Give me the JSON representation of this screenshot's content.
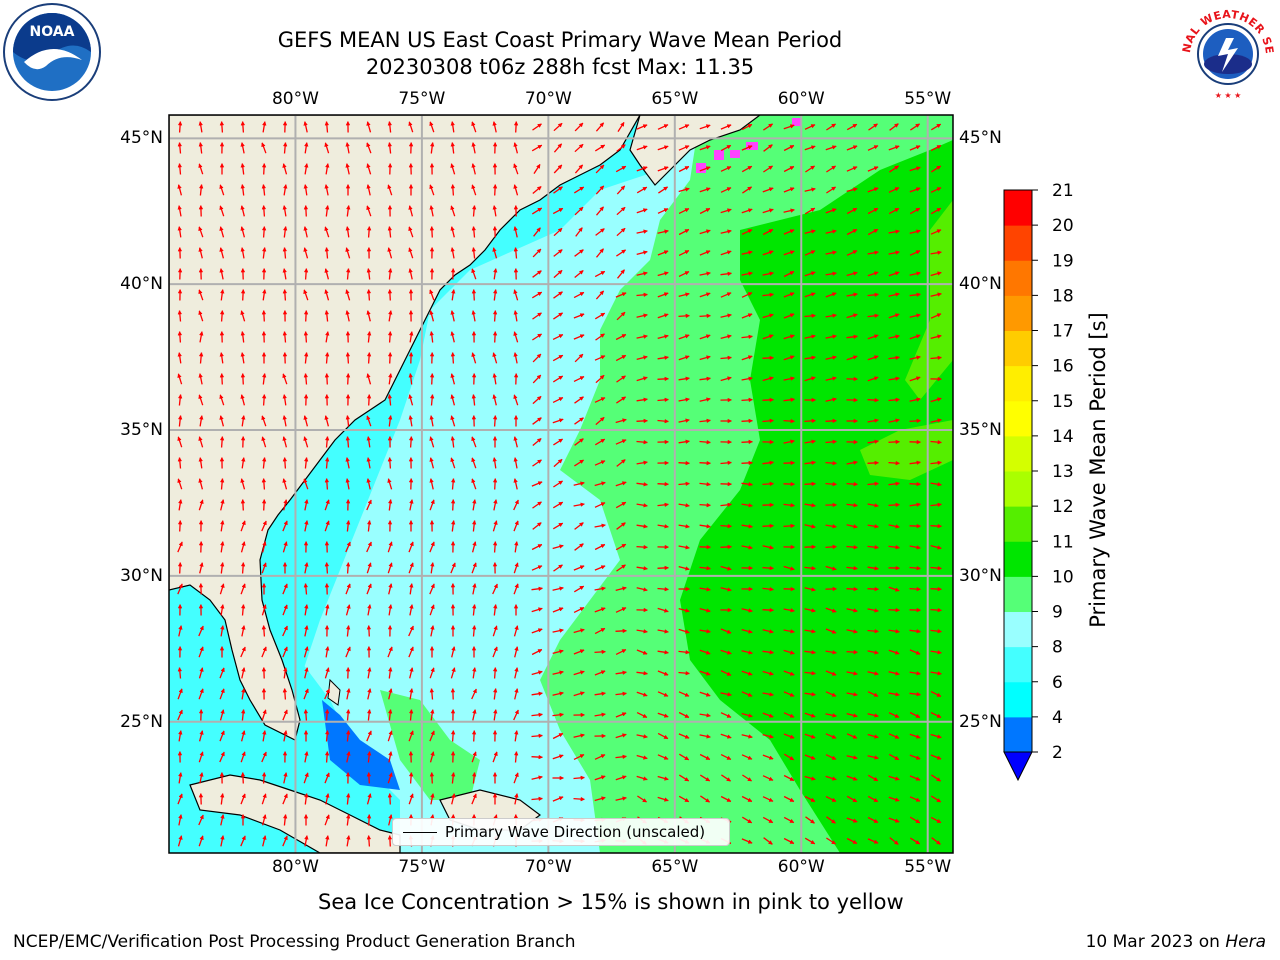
{
  "title_line1": "GEFS MEAN US East Coast Primary Wave Mean Period",
  "title_line2": "20230308 t06z 288h fcst   Max: 11.35",
  "logos": {
    "left": {
      "icon": "noaa-logo",
      "text": "NOAA"
    },
    "right": {
      "icon": "national-weather-service-logo",
      "text": "NATIONAL WEATHER SERVICE"
    }
  },
  "map": {
    "lon_range": [
      -85,
      -54
    ],
    "lat_range": [
      20.5,
      45.8
    ],
    "lon_ticks": [
      {
        "value": -80,
        "label": "80°W"
      },
      {
        "value": -75,
        "label": "75°W"
      },
      {
        "value": -70,
        "label": "70°W"
      },
      {
        "value": -65,
        "label": "65°W"
      },
      {
        "value": -60,
        "label": "60°W"
      },
      {
        "value": -55,
        "label": "55°W"
      }
    ],
    "lat_ticks": [
      {
        "value": 45,
        "label": "45°N"
      },
      {
        "value": 40,
        "label": "40°N"
      },
      {
        "value": 35,
        "label": "35°N"
      },
      {
        "value": 30,
        "label": "30°N"
      },
      {
        "value": 25,
        "label": "25°N"
      }
    ],
    "grid": true,
    "land_color": "#efeddd",
    "arrow_color": "#ff0000"
  },
  "colorbar": {
    "label": "Primary Wave Mean Period [s]",
    "levels": [
      2,
      4,
      6,
      8,
      9,
      10,
      11,
      12,
      13,
      14,
      15,
      16,
      17,
      18,
      19,
      20,
      21
    ],
    "colors": [
      "#0077ff",
      "#00ffff",
      "#44ffff",
      "#99ffff",
      "#55ff77",
      "#00e600",
      "#55ee00",
      "#aaff00",
      "#d4ff00",
      "#ffff00",
      "#ffee00",
      "#ffcc00",
      "#ff9900",
      "#ff7700",
      "#ff4400",
      "#ff0000"
    ],
    "underflow_color": "#0000ff",
    "extend": "min"
  },
  "legend": {
    "label": "Primary Wave Direction (unscaled)",
    "position": "lower-center"
  },
  "note": "Sea Ice Concentration > 15% is shown in pink to yellow",
  "footer_left": "NCEP/EMC/Verification Post Processing Product Generation Branch",
  "footer_right_prefix": "10 Mar 2023 on ",
  "footer_right_host": "Hera"
}
